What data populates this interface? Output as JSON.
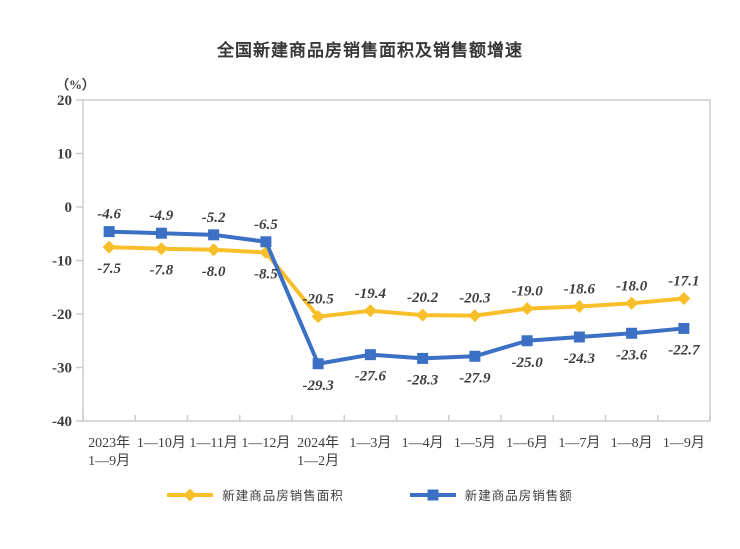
{
  "chart": {
    "title": "全国新建商品房销售面积及销售额增速",
    "unit_label": "（%）"
  },
  "chart_data": {
    "type": "line",
    "title": "全国新建商品房销售面积及销售额增速",
    "unit": "%",
    "categories": [
      "2023年\n1—9月",
      "1—10月",
      "1—11月",
      "1—12月",
      "2024年\n1—2月",
      "1—3月",
      "1—4月",
      "1—5月",
      "1—6月",
      "1—7月",
      "1—8月",
      "1—9月"
    ],
    "ylim": [
      -40,
      20
    ],
    "yticks": [
      20,
      10,
      0,
      -10,
      -20,
      -30,
      -40
    ],
    "grid": false,
    "legend_position": "bottom",
    "series": [
      {
        "name": "新建商品房销售面积",
        "marker": "diamond",
        "color": "#F9BF2B",
        "values": [
          -7.5,
          -7.8,
          -8.0,
          -8.5,
          -20.5,
          -19.4,
          -20.2,
          -20.3,
          -19.0,
          -18.6,
          -18.0,
          -17.1
        ]
      },
      {
        "name": "新建商品房销售额",
        "marker": "square",
        "color": "#3B70C4",
        "values": [
          -4.6,
          -4.9,
          -5.2,
          -6.5,
          -29.3,
          -27.6,
          -28.3,
          -27.9,
          -25.0,
          -24.3,
          -23.6,
          -22.7
        ]
      }
    ],
    "axis_color": "#c9c9c9",
    "label_color": "#3d3d3d"
  }
}
